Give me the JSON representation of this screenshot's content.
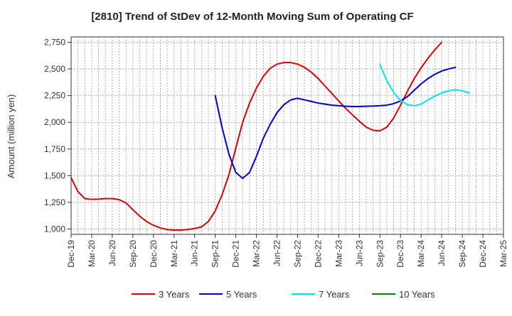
{
  "chart_data": {
    "type": "line",
    "title": "[2810]  Trend of StDev of 12-Month Moving Sum of Operating CF",
    "ylabel": "Amount (million yen)",
    "xlabel": "",
    "ylim": [
      950,
      2800
    ],
    "yticks": [
      1000,
      1250,
      1500,
      1750,
      2000,
      2250,
      2500,
      2750
    ],
    "ytick_labels": [
      "1,000",
      "1,250",
      "1,500",
      "1,750",
      "2,000",
      "2,250",
      "2,500",
      "2,750"
    ],
    "x_tick_labels": [
      "Dec-19",
      "Mar-20",
      "Jun-20",
      "Sep-20",
      "Dec-20",
      "Mar-21",
      "Jun-21",
      "Sep-21",
      "Dec-21",
      "Mar-22",
      "Jun-22",
      "Sep-22",
      "Dec-22",
      "Mar-23",
      "Jun-23",
      "Sep-23",
      "Dec-23",
      "Mar-24",
      "Jun-24",
      "Sep-24",
      "Dec-24",
      "Mar-25"
    ],
    "x_months": [
      "2019-12",
      "2020-01",
      "2020-02",
      "2020-03",
      "2020-04",
      "2020-05",
      "2020-06",
      "2020-07",
      "2020-08",
      "2020-09",
      "2020-10",
      "2020-11",
      "2020-12",
      "2021-01",
      "2021-02",
      "2021-03",
      "2021-04",
      "2021-05",
      "2021-06",
      "2021-07",
      "2021-08",
      "2021-09",
      "2021-10",
      "2021-11",
      "2021-12",
      "2022-01",
      "2022-02",
      "2022-03",
      "2022-04",
      "2022-05",
      "2022-06",
      "2022-07",
      "2022-08",
      "2022-09",
      "2022-10",
      "2022-11",
      "2022-12",
      "2023-01",
      "2023-02",
      "2023-03",
      "2023-04",
      "2023-05",
      "2023-06",
      "2023-07",
      "2023-08",
      "2023-09",
      "2023-10",
      "2023-11",
      "2023-12",
      "2024-01",
      "2024-02",
      "2024-03",
      "2024-04",
      "2024-05",
      "2024-06",
      "2024-07",
      "2024-08",
      "2024-09",
      "2024-10",
      "2024-11",
      "2024-12",
      "2025-01",
      "2025-02",
      "2025-03"
    ],
    "grid": true,
    "legend_position": "bottom",
    "series": [
      {
        "name": "3 Years",
        "color": "#dd0000",
        "start_month": "2019-12",
        "values": [
          1480,
          1350,
          1285,
          1278,
          1280,
          1285,
          1285,
          1275,
          1245,
          1180,
          1120,
          1070,
          1035,
          1010,
          995,
          990,
          990,
          995,
          1005,
          1020,
          1070,
          1170,
          1320,
          1510,
          1760,
          2000,
          2180,
          2320,
          2430,
          2505,
          2545,
          2560,
          2560,
          2545,
          2515,
          2470,
          2410,
          2340,
          2270,
          2200,
          2130,
          2070,
          2010,
          1955,
          1925,
          1920,
          1955,
          2040,
          2160,
          2290,
          2410,
          2510,
          2600,
          2680,
          2750
        ]
      },
      {
        "name": "5 Years",
        "color": "#0000cc",
        "start_month": "2021-09",
        "values": [
          2250,
          1950,
          1700,
          1530,
          1475,
          1530,
          1680,
          1850,
          1980,
          2090,
          2165,
          2210,
          2225,
          2210,
          2195,
          2180,
          2170,
          2160,
          2155,
          2150,
          2148,
          2148,
          2150,
          2152,
          2155,
          2160,
          2175,
          2200,
          2240,
          2300,
          2360,
          2410,
          2450,
          2480,
          2500,
          2515
        ]
      },
      {
        "name": "7 Years",
        "color": "#00e5ee",
        "start_month": "2023-09",
        "values": [
          2540,
          2390,
          2280,
          2205,
          2165,
          2155,
          2170,
          2210,
          2245,
          2275,
          2295,
          2305,
          2295,
          2275
        ]
      },
      {
        "name": "10 Years",
        "color": "#008800",
        "start_month": "2024-09",
        "values": []
      }
    ]
  }
}
